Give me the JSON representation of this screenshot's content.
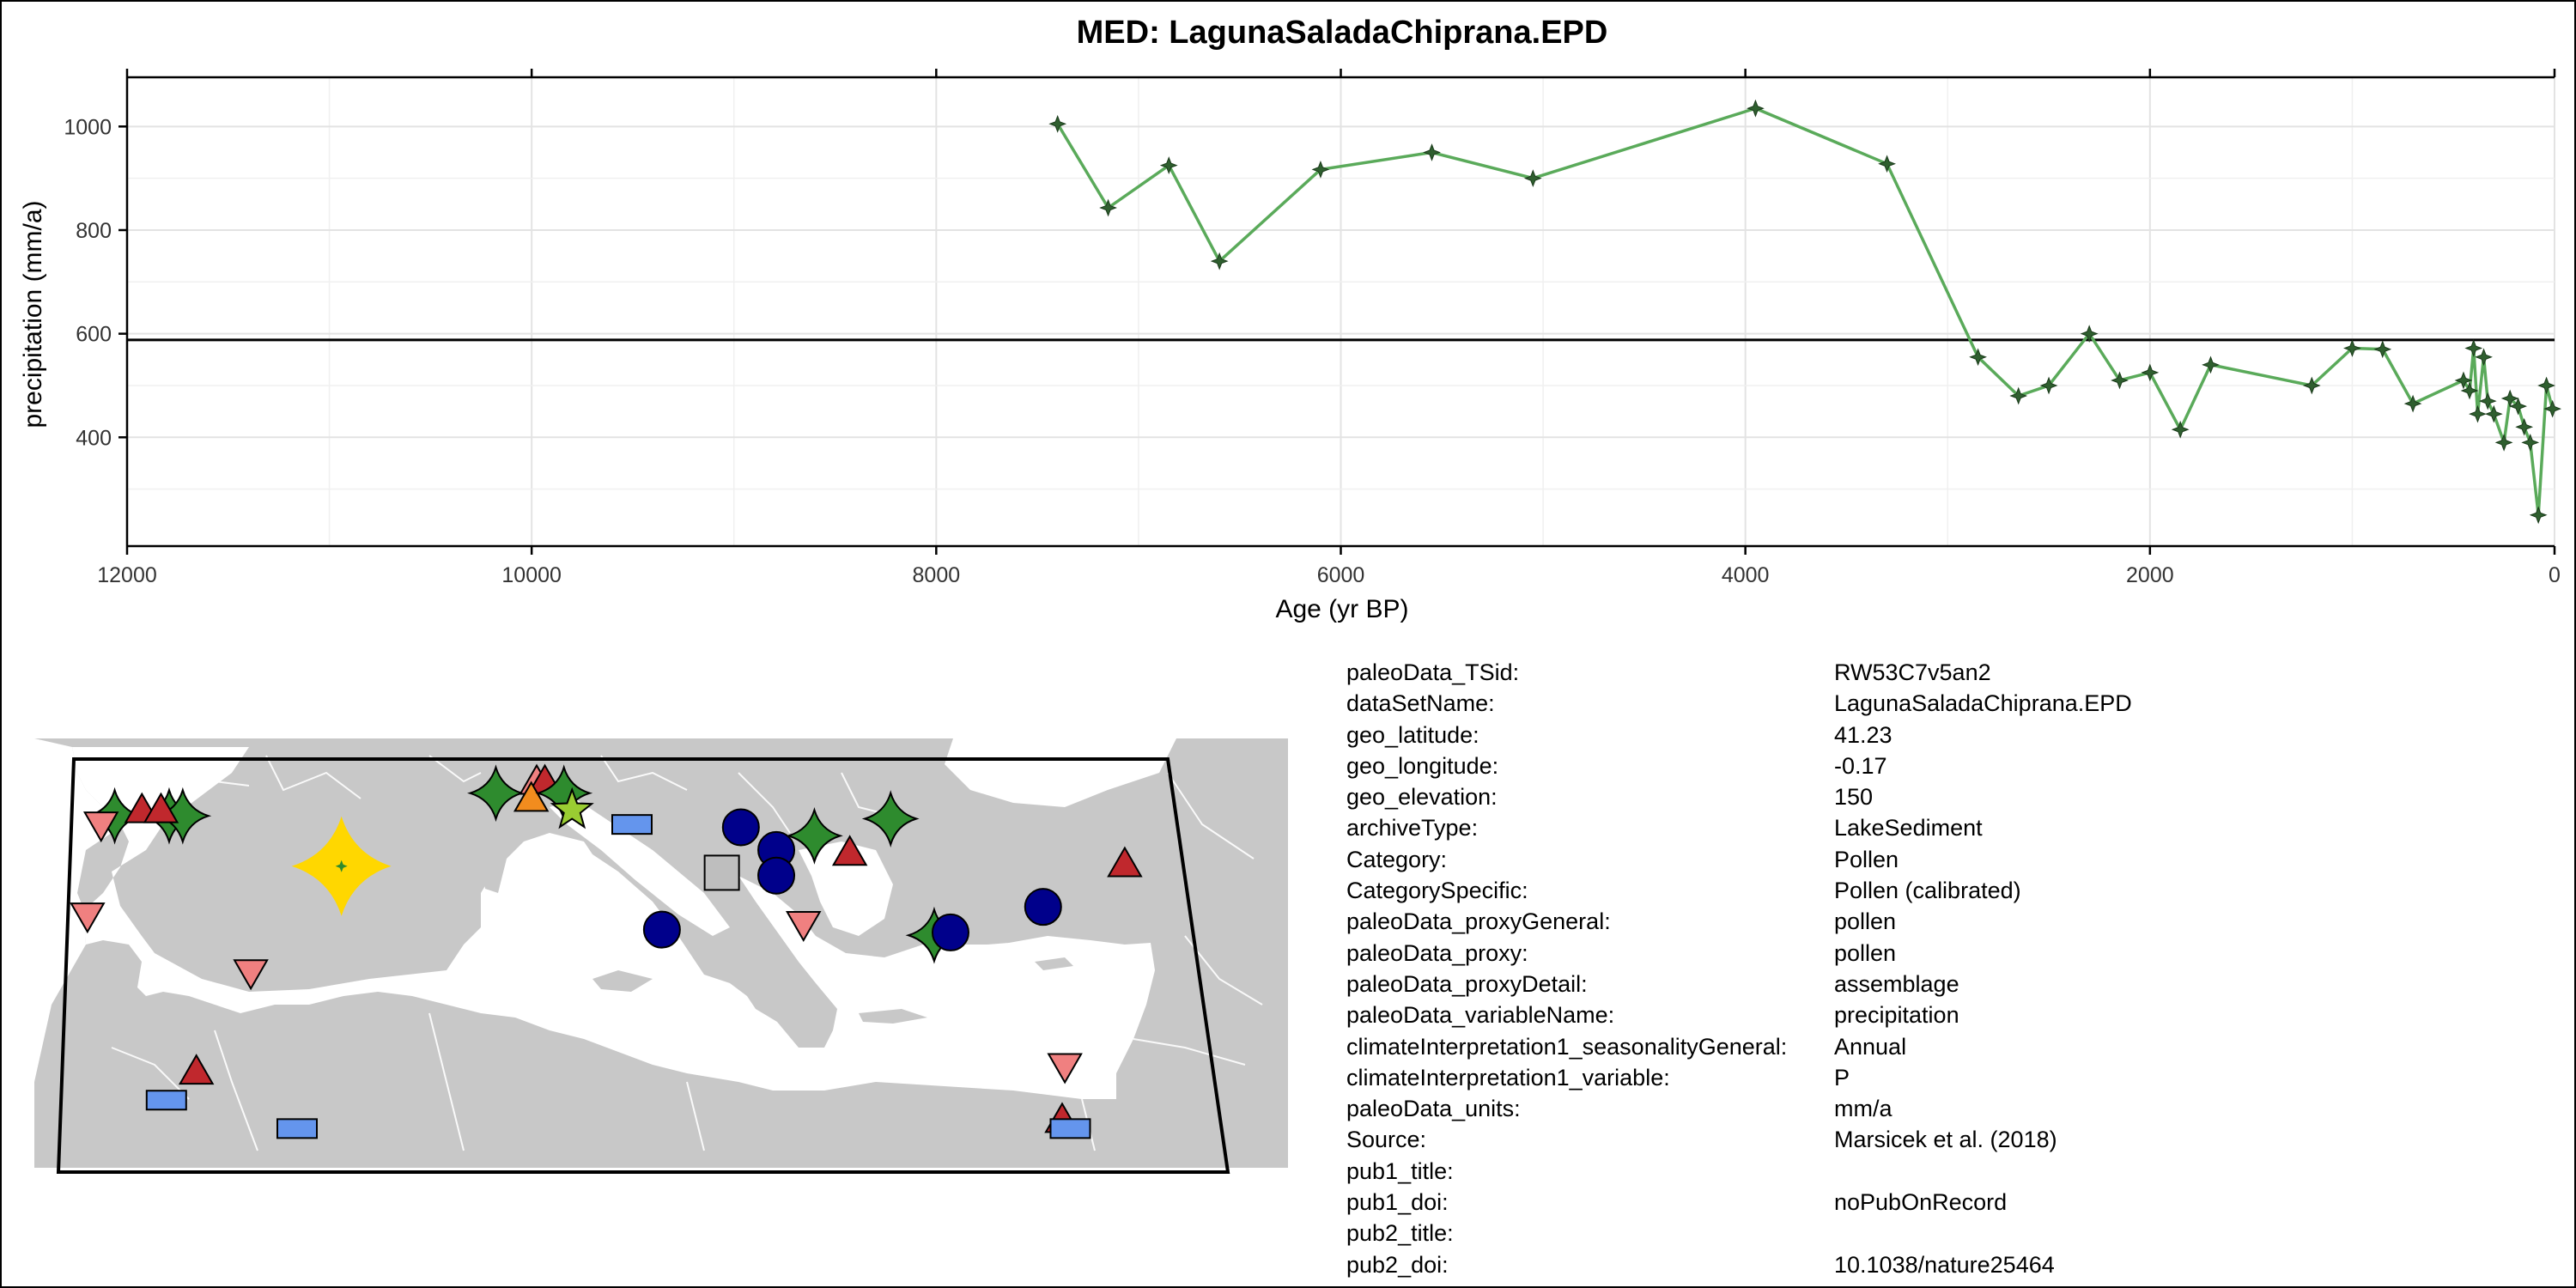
{
  "chart_data": {
    "type": "line",
    "title": "MED: LagunaSaladaChiprana.EPD",
    "xlabel": "Age (yr BP)",
    "ylabel": "precipitation (mm/a)",
    "xlim": [
      12000,
      0
    ],
    "ylim": [
      190,
      1095
    ],
    "x_reversed": true,
    "x_ticks": [
      12000,
      10000,
      8000,
      6000,
      4000,
      2000,
      0
    ],
    "x_tick_labels": [
      "12000",
      "10000",
      "8000",
      "6000",
      "4000",
      "2000",
      "0"
    ],
    "y_ticks": [
      400,
      600,
      800,
      1000
    ],
    "y_tick_labels": [
      "400",
      "600",
      "800",
      "1000"
    ],
    "grid": true,
    "reference_line_y": 588,
    "series": [
      {
        "color": "#5aaa5a",
        "marker_color": "#2f5f2f",
        "x": [
          7400,
          7150,
          6850,
          6600,
          6100,
          5550,
          5050,
          3950,
          3300,
          2850,
          2650,
          2500,
          2300,
          2150,
          2000,
          1850,
          1700,
          1200,
          1000,
          850,
          700,
          450,
          420,
          400,
          380,
          350,
          330,
          300,
          250,
          220,
          180,
          150,
          120,
          80,
          40,
          10
        ],
        "y": [
          1005,
          843,
          925,
          740,
          917,
          950,
          900,
          1035,
          928,
          555,
          480,
          500,
          600,
          510,
          525,
          415,
          540,
          500,
          572,
          570,
          465,
          510,
          490,
          572,
          445,
          555,
          470,
          445,
          390,
          475,
          460,
          420,
          390,
          250,
          500,
          455
        ]
      }
    ]
  },
  "map": {
    "land_color": "#c8c8c8",
    "sea_color": "#ffffff",
    "markers": [
      {
        "shape": "star4",
        "color": "#2e8b2e",
        "lon": -8.5,
        "lat": 43.0
      },
      {
        "shape": "star4",
        "color": "#2e8b2e",
        "lon": -6.5,
        "lat": 43.0
      },
      {
        "shape": "star4",
        "color": "#2e8b2e",
        "lon": -6.0,
        "lat": 43.0
      },
      {
        "shape": "triangle-up",
        "color": "#c0282d",
        "lon": -7.5,
        "lat": 43.2
      },
      {
        "shape": "triangle-up",
        "color": "#c0282d",
        "lon": -6.8,
        "lat": 43.2
      },
      {
        "shape": "triangle-down",
        "color": "#f08080",
        "lon": -9.0,
        "lat": 42.7
      },
      {
        "shape": "triangle-down",
        "color": "#f08080",
        "lon": -9.5,
        "lat": 39.5
      },
      {
        "shape": "star4",
        "color": "#ffd700",
        "lon": -0.17,
        "lat": 41.23,
        "highlight": true
      },
      {
        "shape": "triangle-down",
        "color": "#f08080",
        "lon": -3.5,
        "lat": 37.5
      },
      {
        "shape": "star4",
        "color": "#2e8b2e",
        "lon": 5.5,
        "lat": 43.8
      },
      {
        "shape": "triangle-up",
        "color": "#f08080",
        "lon": 7.0,
        "lat": 44.2
      },
      {
        "shape": "triangle-up",
        "color": "#c0282d",
        "lon": 7.3,
        "lat": 44.2
      },
      {
        "shape": "triangle-up",
        "color": "#f28c1e",
        "lon": 6.8,
        "lat": 43.6
      },
      {
        "shape": "star4",
        "color": "#2e8b2e",
        "lon": 8.0,
        "lat": 43.8
      },
      {
        "shape": "star5",
        "color": "#9acd32",
        "lon": 8.3,
        "lat": 43.2
      },
      {
        "shape": "rectangle",
        "color": "#6495ed",
        "lon": 10.5,
        "lat": 42.7
      },
      {
        "shape": "circle",
        "color": "#00008b",
        "lon": 14.5,
        "lat": 42.6
      },
      {
        "shape": "circle",
        "color": "#00008b",
        "lon": 15.8,
        "lat": 41.8
      },
      {
        "shape": "circle",
        "color": "#00008b",
        "lon": 15.8,
        "lat": 40.9
      },
      {
        "shape": "square",
        "color": "#bebebe",
        "lon": 13.8,
        "lat": 41.0
      },
      {
        "shape": "star4",
        "color": "#2e8b2e",
        "lon": 17.2,
        "lat": 42.3
      },
      {
        "shape": "triangle-up",
        "color": "#c0282d",
        "lon": 18.5,
        "lat": 41.7
      },
      {
        "shape": "star4",
        "color": "#2e8b2e",
        "lon": 20.0,
        "lat": 42.9
      },
      {
        "shape": "triangle-down",
        "color": "#f08080",
        "lon": 16.8,
        "lat": 39.2
      },
      {
        "shape": "circle",
        "color": "#00008b",
        "lon": 11.6,
        "lat": 39.0
      },
      {
        "shape": "star4",
        "color": "#2e8b2e",
        "lon": 21.6,
        "lat": 38.8
      },
      {
        "shape": "circle",
        "color": "#00008b",
        "lon": 22.2,
        "lat": 38.9
      },
      {
        "shape": "circle",
        "color": "#00008b",
        "lon": 25.6,
        "lat": 39.8
      },
      {
        "shape": "triangle-up",
        "color": "#c0282d",
        "lon": 28.6,
        "lat": 41.3
      },
      {
        "shape": "triangle-up",
        "color": "#c0282d",
        "lon": -5.5,
        "lat": 34.0
      },
      {
        "shape": "rectangle",
        "color": "#6495ed",
        "lon": -6.6,
        "lat": 33.0
      },
      {
        "shape": "rectangle",
        "color": "#6495ed",
        "lon": -1.8,
        "lat": 32.0
      },
      {
        "shape": "triangle-down",
        "color": "#f08080",
        "lon": 26.4,
        "lat": 34.2
      },
      {
        "shape": "triangle-up",
        "color": "#c0282d",
        "lon": 26.3,
        "lat": 32.3
      },
      {
        "shape": "rectangle",
        "color": "#6495ed",
        "lon": 26.6,
        "lat": 32.0
      }
    ]
  },
  "metadata": [
    {
      "key": "paleoData_TSid:",
      "value": "RW53C7v5an2"
    },
    {
      "key": "dataSetName:",
      "value": "LagunaSaladaChiprana.EPD"
    },
    {
      "key": "geo_latitude:",
      "value": "41.23"
    },
    {
      "key": "geo_longitude:",
      "value": "-0.17"
    },
    {
      "key": "geo_elevation:",
      "value": "150"
    },
    {
      "key": "archiveType:",
      "value": "LakeSediment"
    },
    {
      "key": "Category:",
      "value": "Pollen"
    },
    {
      "key": "CategorySpecific:",
      "value": "Pollen (calibrated)"
    },
    {
      "key": "paleoData_proxyGeneral:",
      "value": "pollen"
    },
    {
      "key": "paleoData_proxy:",
      "value": "pollen"
    },
    {
      "key": "paleoData_proxyDetail:",
      "value": "assemblage"
    },
    {
      "key": "paleoData_variableName:",
      "value": "precipitation"
    },
    {
      "key": "climateInterpretation1_seasonalityGeneral:",
      "value": "Annual"
    },
    {
      "key": "climateInterpretation1_variable:",
      "value": "P"
    },
    {
      "key": "paleoData_units:",
      "value": "mm/a"
    },
    {
      "key": "Source:",
      "value": "Marsicek et al. (2018)"
    },
    {
      "key": "pub1_title:",
      "value": ""
    },
    {
      "key": "pub1_doi:",
      "value": "noPubOnRecord"
    },
    {
      "key": "pub2_title:",
      "value": ""
    },
    {
      "key": "pub2_doi:",
      "value": "10.1038/nature25464"
    }
  ]
}
